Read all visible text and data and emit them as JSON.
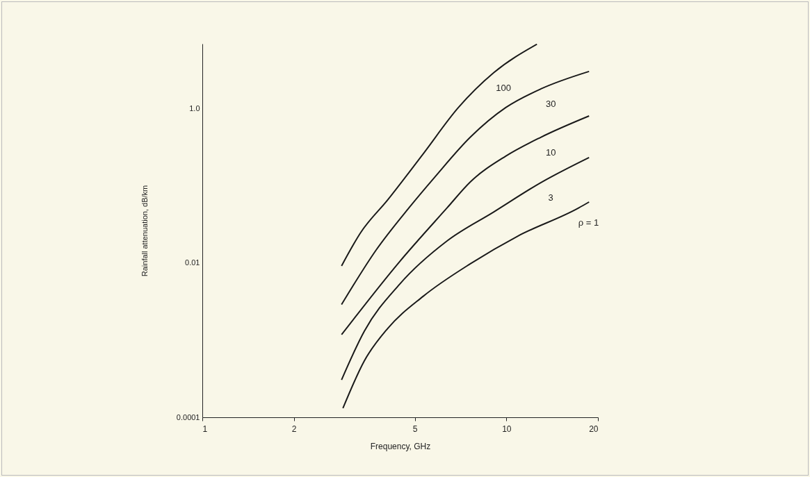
{
  "chart_data": {
    "type": "line",
    "xlabel": "Frequency, GHz",
    "ylabel": "Rainfall attenuation, dB/km",
    "log": "xy",
    "xlim": [
      1,
      20
    ],
    "xticks": [
      1,
      2,
      5,
      10,
      20
    ],
    "ylim": [
      0.0001,
      7
    ],
    "yticks": [
      0.0001,
      0.01,
      {
        "value": 1,
        "label": "1.0"
      }
    ],
    "grid": false,
    "legend": false,
    "series": [
      {
        "name": "100",
        "color": "#1a1a1a",
        "x": [
          2.87,
          3.32,
          4.07,
          5.32,
          6.95,
          9.08,
          12.6
        ],
        "values": [
          0.0092,
          0.025,
          0.066,
          0.26,
          1.04,
          2.94,
          6.9
        ]
      },
      {
        "name": "30",
        "color": "#1a1a1a",
        "x": [
          2.87,
          3.73,
          4.78,
          5.82,
          7.61,
          9.95,
          13.0,
          18.7
        ],
        "values": [
          0.0029,
          0.0148,
          0.052,
          0.131,
          0.43,
          1.04,
          1.82,
          3.06
        ]
      },
      {
        "name": "10",
        "color": "#1a1a1a",
        "x": [
          2.87,
          4.45,
          6.38,
          7.61,
          9.95,
          13.0,
          18.7
        ],
        "values": [
          0.00118,
          0.0104,
          0.052,
          0.113,
          0.244,
          0.43,
          0.81
        ]
      },
      {
        "name": "3",
        "color": "#1a1a1a",
        "x": [
          2.87,
          3.41,
          4.45,
          6.38,
          9.08,
          13.0,
          18.7
        ],
        "values": [
          0.000306,
          0.00131,
          0.0053,
          0.0194,
          0.046,
          0.111,
          0.234
        ]
      },
      {
        "name": "ρ = 1",
        "color": "#1a1a1a",
        "x": [
          2.9,
          3.41,
          4.07,
          5.32,
          7.61,
          10.9,
          17.3,
          18.7
        ],
        "values": [
          0.000131,
          0.00054,
          0.00142,
          0.0037,
          0.0098,
          0.0224,
          0.052,
          0.062
        ]
      }
    ]
  }
}
